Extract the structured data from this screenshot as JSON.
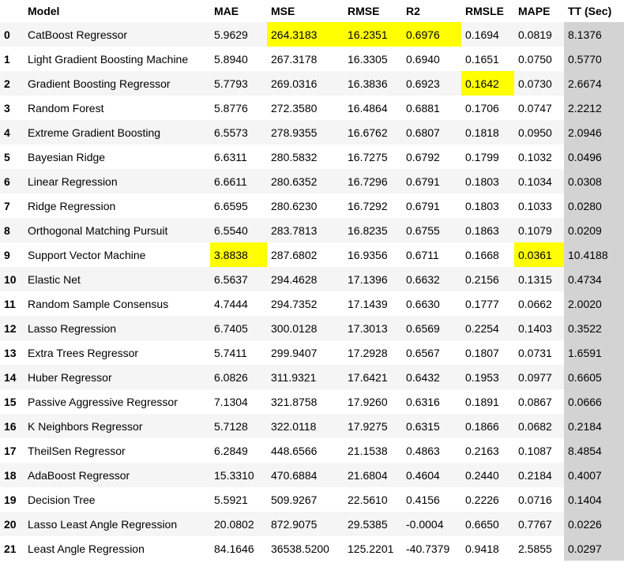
{
  "table": {
    "columns": [
      "",
      "Model",
      "MAE",
      "MSE",
      "RMSE",
      "R2",
      "RMSLE",
      "MAPE",
      "TT (Sec)"
    ],
    "rows": [
      {
        "idx": "0",
        "cells": [
          "CatBoost Regressor",
          "5.9629",
          "264.3183",
          "16.2351",
          "0.6976",
          "0.1694",
          "0.0819",
          "8.1376"
        ],
        "highlight": [
          false,
          false,
          true,
          true,
          true,
          false,
          false,
          false
        ]
      },
      {
        "idx": "1",
        "cells": [
          "Light Gradient Boosting Machine",
          "5.8940",
          "267.3178",
          "16.3305",
          "0.6940",
          "0.1651",
          "0.0750",
          "0.5770"
        ],
        "highlight": [
          false,
          false,
          false,
          false,
          false,
          false,
          false,
          false
        ]
      },
      {
        "idx": "2",
        "cells": [
          "Gradient Boosting Regressor",
          "5.7793",
          "269.0316",
          "16.3836",
          "0.6923",
          "0.1642",
          "0.0730",
          "2.6674"
        ],
        "highlight": [
          false,
          false,
          false,
          false,
          false,
          true,
          false,
          false
        ]
      },
      {
        "idx": "3",
        "cells": [
          "Random Forest",
          "5.8776",
          "272.3580",
          "16.4864",
          "0.6881",
          "0.1706",
          "0.0747",
          "2.2212"
        ],
        "highlight": [
          false,
          false,
          false,
          false,
          false,
          false,
          false,
          false
        ]
      },
      {
        "idx": "4",
        "cells": [
          "Extreme Gradient Boosting",
          "6.5573",
          "278.9355",
          "16.6762",
          "0.6807",
          "0.1818",
          "0.0950",
          "2.0946"
        ],
        "highlight": [
          false,
          false,
          false,
          false,
          false,
          false,
          false,
          false
        ]
      },
      {
        "idx": "5",
        "cells": [
          "Bayesian Ridge",
          "6.6311",
          "280.5832",
          "16.7275",
          "0.6792",
          "0.1799",
          "0.1032",
          "0.0496"
        ],
        "highlight": [
          false,
          false,
          false,
          false,
          false,
          false,
          false,
          false
        ]
      },
      {
        "idx": "6",
        "cells": [
          "Linear Regression",
          "6.6611",
          "280.6352",
          "16.7296",
          "0.6791",
          "0.1803",
          "0.1034",
          "0.0308"
        ],
        "highlight": [
          false,
          false,
          false,
          false,
          false,
          false,
          false,
          false
        ]
      },
      {
        "idx": "7",
        "cells": [
          "Ridge Regression",
          "6.6595",
          "280.6230",
          "16.7292",
          "0.6791",
          "0.1803",
          "0.1033",
          "0.0280"
        ],
        "highlight": [
          false,
          false,
          false,
          false,
          false,
          false,
          false,
          false
        ]
      },
      {
        "idx": "8",
        "cells": [
          "Orthogonal Matching Pursuit",
          "6.5540",
          "283.7813",
          "16.8235",
          "0.6755",
          "0.1863",
          "0.1079",
          "0.0209"
        ],
        "highlight": [
          false,
          false,
          false,
          false,
          false,
          false,
          false,
          false
        ]
      },
      {
        "idx": "9",
        "cells": [
          "Support Vector Machine",
          "3.8838",
          "287.6802",
          "16.9356",
          "0.6711",
          "0.1668",
          "0.0361",
          "10.4188"
        ],
        "highlight": [
          false,
          true,
          false,
          false,
          false,
          false,
          true,
          false
        ]
      },
      {
        "idx": "10",
        "cells": [
          "Elastic Net",
          "6.5637",
          "294.4628",
          "17.1396",
          "0.6632",
          "0.2156",
          "0.1315",
          "0.4734"
        ],
        "highlight": [
          false,
          false,
          false,
          false,
          false,
          false,
          false,
          false
        ]
      },
      {
        "idx": "11",
        "cells": [
          "Random Sample Consensus",
          "4.7444",
          "294.7352",
          "17.1439",
          "0.6630",
          "0.1777",
          "0.0662",
          "2.0020"
        ],
        "highlight": [
          false,
          false,
          false,
          false,
          false,
          false,
          false,
          false
        ]
      },
      {
        "idx": "12",
        "cells": [
          "Lasso Regression",
          "6.7405",
          "300.0128",
          "17.3013",
          "0.6569",
          "0.2254",
          "0.1403",
          "0.3522"
        ],
        "highlight": [
          false,
          false,
          false,
          false,
          false,
          false,
          false,
          false
        ]
      },
      {
        "idx": "13",
        "cells": [
          "Extra Trees Regressor",
          "5.7411",
          "299.9407",
          "17.2928",
          "0.6567",
          "0.1807",
          "0.0731",
          "1.6591"
        ],
        "highlight": [
          false,
          false,
          false,
          false,
          false,
          false,
          false,
          false
        ]
      },
      {
        "idx": "14",
        "cells": [
          "Huber Regressor",
          "6.0826",
          "311.9321",
          "17.6421",
          "0.6432",
          "0.1953",
          "0.0977",
          "0.6605"
        ],
        "highlight": [
          false,
          false,
          false,
          false,
          false,
          false,
          false,
          false
        ]
      },
      {
        "idx": "15",
        "cells": [
          "Passive Aggressive Regressor",
          "7.1304",
          "321.8758",
          "17.9260",
          "0.6316",
          "0.1891",
          "0.0867",
          "0.0666"
        ],
        "highlight": [
          false,
          false,
          false,
          false,
          false,
          false,
          false,
          false
        ]
      },
      {
        "idx": "16",
        "cells": [
          "K Neighbors Regressor",
          "5.7128",
          "322.0118",
          "17.9275",
          "0.6315",
          "0.1866",
          "0.0682",
          "0.2184"
        ],
        "highlight": [
          false,
          false,
          false,
          false,
          false,
          false,
          false,
          false
        ]
      },
      {
        "idx": "17",
        "cells": [
          "TheilSen Regressor",
          "6.2849",
          "448.6566",
          "21.1538",
          "0.4863",
          "0.2163",
          "0.1087",
          "8.4854"
        ],
        "highlight": [
          false,
          false,
          false,
          false,
          false,
          false,
          false,
          false
        ]
      },
      {
        "idx": "18",
        "cells": [
          "AdaBoost Regressor",
          "15.3310",
          "470.6884",
          "21.6804",
          "0.4604",
          "0.2440",
          "0.2184",
          "0.4007"
        ],
        "highlight": [
          false,
          false,
          false,
          false,
          false,
          false,
          false,
          false
        ]
      },
      {
        "idx": "19",
        "cells": [
          "Decision Tree",
          "5.5921",
          "509.9267",
          "22.5610",
          "0.4156",
          "0.2226",
          "0.0716",
          "0.1404"
        ],
        "highlight": [
          false,
          false,
          false,
          false,
          false,
          false,
          false,
          false
        ]
      },
      {
        "idx": "20",
        "cells": [
          "Lasso Least Angle Regression",
          "20.0802",
          "872.9075",
          "29.5385",
          "-0.0004",
          "0.6650",
          "0.7767",
          "0.0226"
        ],
        "highlight": [
          false,
          false,
          false,
          false,
          false,
          false,
          false,
          false
        ]
      },
      {
        "idx": "21",
        "cells": [
          "Least Angle Regression",
          "84.1646",
          "36538.5200",
          "125.2201",
          "-40.7379",
          "0.9418",
          "2.5855",
          "0.0297"
        ],
        "highlight": [
          false,
          false,
          false,
          false,
          false,
          false,
          false,
          false
        ]
      }
    ]
  },
  "colors": {
    "highlight": "#ffff00",
    "tt_column": "#d3d3d3",
    "row_striped": "#f5f5f5",
    "row_plain": "#ffffff"
  }
}
